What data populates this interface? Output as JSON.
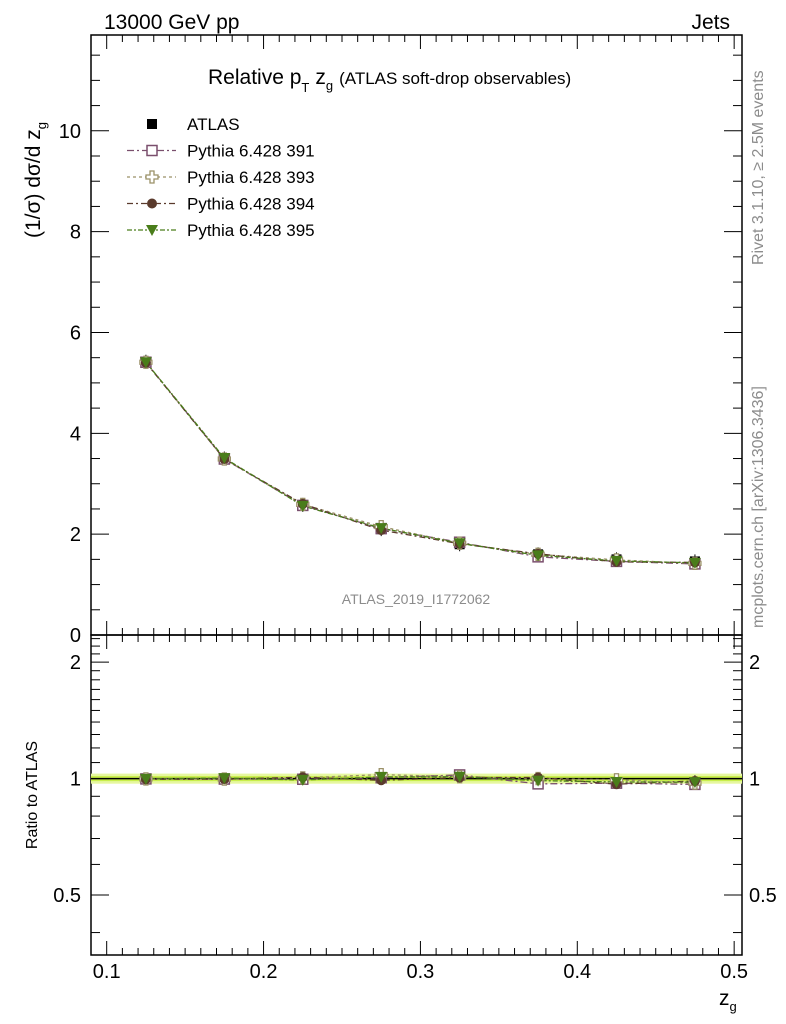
{
  "header": {
    "left": "13000 GeV pp",
    "right": "Jets"
  },
  "side_labels": {
    "rivet": "Rivet 3.1.10, ≥ 2.5M events",
    "mcplots": "mcplots.cern.ch [arXiv:1306.3436]"
  },
  "title": {
    "main": "Relative p",
    "sub_T": "T",
    "z": "z",
    "sub_g": "g",
    "rest": "(ATLAS soft-drop observables)"
  },
  "watermark": "ATLAS_2019_I1772062",
  "ylabel_main": "(1/σ) dσ/d z",
  "ylabel_main_sub": "g",
  "ylabel_ratio": "Ratio to ATLAS",
  "xlabel": "z",
  "xlabel_sub": "g",
  "colors": {
    "atlas": "#000000",
    "p391": "#7a4f6d",
    "p393": "#9b9168",
    "p394": "#5a3a2c",
    "p395": "#4a7d1a",
    "band_outer": "#e6f7a0",
    "band_inner": "#c9ef4a"
  },
  "chart_data": {
    "type": "line",
    "x": [
      0.125,
      0.175,
      0.225,
      0.275,
      0.325,
      0.375,
      0.425,
      0.475
    ],
    "xlim": [
      0.09,
      0.505
    ],
    "xticks": [
      "0.1",
      "0.2",
      "0.3",
      "0.4",
      "0.5"
    ],
    "main": {
      "ylim": [
        0,
        11.9
      ],
      "yticks": [
        "0",
        "2",
        "4",
        "6",
        "8",
        "10"
      ],
      "series": [
        {
          "name": "ATLAS",
          "marker": "filled-square",
          "values": [
            5.42,
            3.5,
            2.58,
            2.1,
            1.8,
            1.6,
            1.5,
            1.46
          ]
        },
        {
          "name": "Pythia 6.428 391",
          "marker": "open-square",
          "values": [
            5.41,
            3.49,
            2.57,
            2.11,
            1.84,
            1.55,
            1.46,
            1.41
          ]
        },
        {
          "name": "Pythia 6.428 393",
          "marker": "open-cross",
          "values": [
            5.41,
            3.49,
            2.59,
            2.15,
            1.82,
            1.6,
            1.49,
            1.42
          ]
        },
        {
          "name": "Pythia 6.428 394",
          "marker": "filled-circle",
          "values": [
            5.4,
            3.49,
            2.6,
            2.08,
            1.81,
            1.61,
            1.45,
            1.44
          ]
        },
        {
          "name": "Pythia 6.428 395",
          "marker": "filled-triangle-down",
          "values": [
            5.41,
            3.51,
            2.56,
            2.12,
            1.82,
            1.58,
            1.47,
            1.43
          ]
        }
      ]
    },
    "ratio": {
      "ylim": [
        0.35,
        2.35
      ],
      "log": true,
      "yticks": [
        "0.5",
        "1",
        "2"
      ],
      "band": {
        "inner": 0.015,
        "outer": 0.03
      },
      "series": [
        {
          "name": "Pythia 6.428 391",
          "values": [
            0.998,
            0.997,
            0.996,
            1.005,
            1.022,
            0.969,
            0.973,
            0.966
          ]
        },
        {
          "name": "Pythia 6.428 393",
          "values": [
            0.998,
            0.997,
            1.004,
            1.024,
            1.011,
            1.0,
            0.993,
            0.973
          ]
        },
        {
          "name": "Pythia 6.428 394",
          "values": [
            0.996,
            0.997,
            1.008,
            0.99,
            1.006,
            1.006,
            0.967,
            0.986
          ]
        },
        {
          "name": "Pythia 6.428 395",
          "values": [
            0.998,
            1.003,
            0.992,
            1.01,
            1.011,
            0.988,
            0.98,
            0.979
          ]
        }
      ]
    }
  }
}
